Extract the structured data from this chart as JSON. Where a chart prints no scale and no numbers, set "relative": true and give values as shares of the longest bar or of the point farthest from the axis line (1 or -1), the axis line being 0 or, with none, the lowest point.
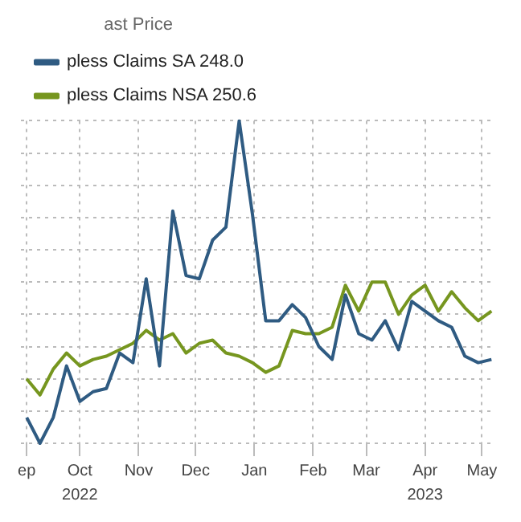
{
  "chart_data": {
    "type": "line",
    "legend_title": "ast Price",
    "relative": true,
    "grid": true,
    "legend": "top left",
    "marker": "none",
    "line_style": "solid",
    "x": [
      "2022-09-17",
      "2022-09-24",
      "2022-10-01",
      "2022-10-08",
      "2022-10-15",
      "2022-10-22",
      "2022-10-29",
      "2022-11-05",
      "2022-11-12",
      "2022-11-19",
      "2022-11-26",
      "2022-12-03",
      "2022-12-10",
      "2022-12-17",
      "2022-12-24",
      "2022-12-31",
      "2023-01-07",
      "2023-01-14",
      "2023-01-21",
      "2023-01-28",
      "2023-02-04",
      "2023-02-11",
      "2023-02-18",
      "2023-02-25",
      "2023-03-04",
      "2023-03-11",
      "2023-03-18",
      "2023-03-25",
      "2023-04-01",
      "2023-04-08",
      "2023-04-15",
      "2023-04-22",
      "2023-04-29",
      "2023-05-06",
      "2023-05-13",
      "2023-05-20"
    ],
    "xlim": [
      "2022-09-14",
      "2023-05-22"
    ],
    "xticks": [
      {
        "value": "2022-09-17",
        "label": "ep"
      },
      {
        "value": "2022-10-15",
        "label": "Oct"
      },
      {
        "value": "2022-11-15",
        "label": "Nov"
      },
      {
        "value": "2022-12-15",
        "label": "Dec"
      },
      {
        "value": "2023-01-15",
        "label": "Jan"
      },
      {
        "value": "2023-02-15",
        "label": "Feb"
      },
      {
        "value": "2023-03-15",
        "label": "Mar"
      },
      {
        "value": "2023-04-15",
        "label": "Apr"
      },
      {
        "value": "2023-05-15",
        "label": "May"
      }
    ],
    "x2lim": [
      "2022-09-14",
      "2023-05-22"
    ],
    "x2ticks": [
      {
        "value": "2022-10-15",
        "label": "2022"
      },
      {
        "value": "2023-04-15",
        "label": "2023"
      }
    ],
    "series": [
      {
        "name": "pless Claims SA 248.0",
        "color": "#2f5b82",
        "values": [
          0.08,
          0,
          0.08,
          0.24,
          0.13,
          0.16,
          0.17,
          0.28,
          0.25,
          0.51,
          0.24,
          0.72,
          0.52,
          0.51,
          0.63,
          0.67,
          1,
          0.71,
          0.38,
          0.38,
          0.43,
          0.39,
          0.3,
          0.26,
          0.46,
          0.34,
          0.32,
          0.38,
          0.29,
          0.44,
          0.41,
          0.38,
          0.36,
          0.27,
          0.25,
          0.26
        ]
      },
      {
        "name": "pless Claims NSA 250.6",
        "color": "#76961f",
        "values": [
          0.2,
          0.15,
          0.23,
          0.28,
          0.24,
          0.26,
          0.27,
          0.29,
          0.31,
          0.35,
          0.32,
          0.34,
          0.28,
          0.31,
          0.32,
          0.28,
          0.27,
          0.25,
          0.22,
          0.24,
          0.35,
          0.34,
          0.34,
          0.36,
          0.49,
          0.41,
          0.5,
          0.5,
          0.4,
          0.46,
          0.49,
          0.41,
          0.47,
          0.42,
          0.38,
          0.41
        ]
      }
    ]
  }
}
